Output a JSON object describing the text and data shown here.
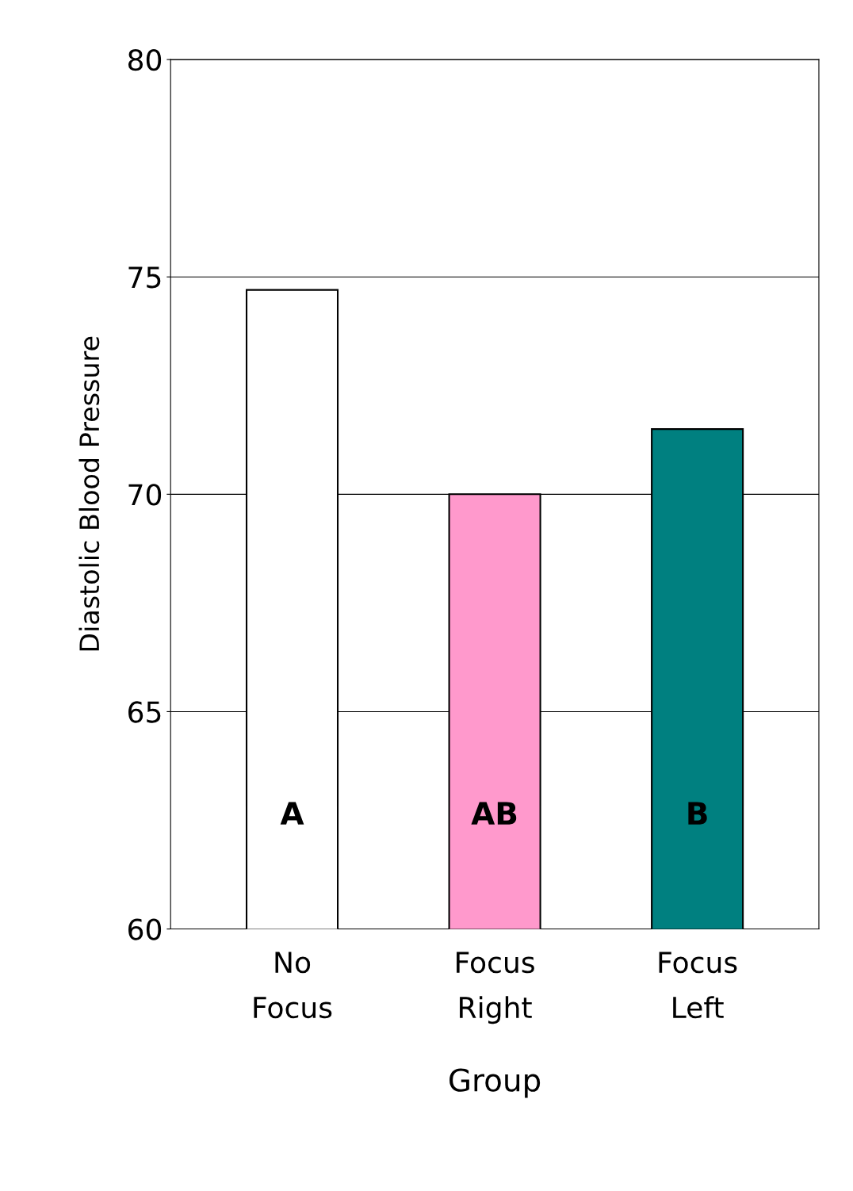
{
  "chart_data": {
    "type": "bar",
    "xlabel": "Group",
    "ylabel": "Diastolic Blood Pressure",
    "categories": [
      "No\nFocus",
      "Focus\nRight",
      "Focus\nLeft"
    ],
    "values": [
      74.7,
      70.0,
      71.5
    ],
    "colors": [
      "#ffffff",
      "#ff99cc",
      "#008080"
    ],
    "ylim": [
      60,
      80
    ],
    "yticks": [
      60,
      65,
      70,
      75,
      80
    ],
    "grid": "y",
    "annotations": [
      "A",
      "AB",
      "B"
    ]
  }
}
